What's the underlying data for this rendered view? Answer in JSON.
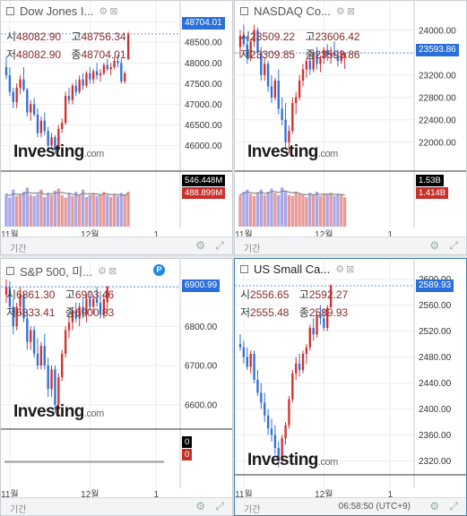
{
  "colors": {
    "up": "#d2302e",
    "down": "#2f6fd6",
    "vol_up": "#e79a98",
    "vol_down": "#a8a7e8",
    "price_tag": "#2a6fdb",
    "grid": "#eeeeee",
    "dash": "#6a98e0"
  },
  "logo": {
    "text": "Investing",
    "suffix": ".com"
  },
  "months": [
    "11월",
    "12월",
    "1"
  ],
  "bottom": {
    "period_label": "기간",
    "time": "06:58:50 (UTC+9)",
    "gear_icon": "gear-icon",
    "expand_icon": "expand-icon"
  },
  "panels": [
    {
      "title": "Dow Jones I...",
      "ohlc": {
        "o_label": "시",
        "o": "48082.90",
        "h_label": "고",
        "h": "48756.34",
        "l_label": "저",
        "l": "48082.90",
        "c_label": "종",
        "c": "48704.01"
      },
      "price_label": "48704.01",
      "vol_labels": {
        "top": "546.448M",
        "bottom": "488.899M"
      },
      "chart_data": {
        "type": "candlestick",
        "ylim": [
          45400,
          49200
        ],
        "yticks": [
          49000,
          48500,
          48000,
          47500,
          47000,
          46500,
          46000
        ],
        "last": 48704.01,
        "months": [
          {
            "label": "11월",
            "i": 1
          },
          {
            "label": "12월",
            "i": 24
          },
          {
            "label": "1",
            "i": 43
          }
        ],
        "candles": [
          [
            47900,
            48150,
            47600,
            47700
          ],
          [
            47700,
            47900,
            47200,
            47300
          ],
          [
            47300,
            47400,
            46900,
            47050
          ],
          [
            47050,
            47500,
            46900,
            47400
          ],
          [
            47400,
            47700,
            47250,
            47600
          ],
          [
            47600,
            47900,
            47300,
            47350
          ],
          [
            47350,
            47400,
            46700,
            46800
          ],
          [
            46800,
            47100,
            46600,
            47000
          ],
          [
            47000,
            47150,
            46700,
            46750
          ],
          [
            46750,
            46900,
            46200,
            46300
          ],
          [
            46300,
            46700,
            46200,
            46600
          ],
          [
            46600,
            46800,
            46250,
            46350
          ],
          [
            46350,
            46450,
            45900,
            46000
          ],
          [
            46000,
            46300,
            45950,
            46200
          ],
          [
            46200,
            46250,
            45800,
            45900
          ],
          [
            45900,
            46500,
            45850,
            46400
          ],
          [
            46400,
            46650,
            46300,
            46550
          ],
          [
            46550,
            47300,
            46500,
            47200
          ],
          [
            47200,
            47400,
            47000,
            47100
          ],
          [
            47100,
            47500,
            47000,
            47450
          ],
          [
            47450,
            47600,
            47200,
            47300
          ],
          [
            47300,
            47700,
            47250,
            47600
          ],
          [
            47600,
            47750,
            47350,
            47450
          ],
          [
            47450,
            47800,
            47400,
            47750
          ],
          [
            47750,
            47900,
            47500,
            47600
          ],
          [
            47600,
            47850,
            47500,
            47800
          ],
          [
            47800,
            48000,
            47600,
            47700
          ],
          [
            47700,
            47850,
            47550,
            47750
          ],
          [
            47750,
            48000,
            47700,
            47950
          ],
          [
            47950,
            48100,
            47800,
            47850
          ],
          [
            47850,
            48000,
            47700,
            47900
          ],
          [
            47900,
            48150,
            47850,
            48050
          ],
          [
            48050,
            48200,
            47900,
            48000
          ],
          [
            48000,
            48100,
            47500,
            47550
          ],
          [
            47550,
            47800,
            47500,
            47750
          ],
          [
            48082.9,
            48756.34,
            48082.9,
            48704.01
          ]
        ],
        "volume": [
          0.62,
          0.55,
          0.7,
          0.58,
          0.6,
          0.66,
          0.74,
          0.6,
          0.58,
          0.62,
          0.7,
          0.56,
          0.64,
          0.6,
          0.68,
          0.72,
          0.6,
          0.55,
          0.62,
          0.58,
          0.66,
          0.6,
          0.7,
          0.56,
          0.6,
          0.64,
          0.58,
          0.62,
          0.66,
          0.6,
          0.56,
          0.62,
          0.58,
          0.64,
          0.6,
          0.66
        ]
      }
    },
    {
      "title": "NASDAQ Co...",
      "ohlc": {
        "o_label": "시",
        "o": "23509.22",
        "h_label": "고",
        "h": "23606.42",
        "l_label": "저",
        "l": "23309.85",
        "c_label": "종",
        "c": "23593.86"
      },
      "price_label": "23593.86",
      "vol_labels": {
        "top": "1.53B",
        "bottom": "1.414B"
      },
      "chart_data": {
        "type": "candlestick",
        "ylim": [
          21500,
          24300
        ],
        "yticks": [
          24000,
          23600,
          23200,
          22800,
          22400,
          22000
        ],
        "last": 23593.86,
        "months": [
          {
            "label": "11월",
            "i": 1
          },
          {
            "label": "12월",
            "i": 24
          },
          {
            "label": "1",
            "i": 43
          }
        ],
        "candles": [
          [
            23700,
            24000,
            23500,
            23900
          ],
          [
            23900,
            24100,
            23700,
            23750
          ],
          [
            23750,
            23900,
            23400,
            23500
          ],
          [
            23500,
            23850,
            23450,
            23800
          ],
          [
            23800,
            24100,
            23700,
            24000
          ],
          [
            24000,
            24050,
            23500,
            23600
          ],
          [
            23600,
            23700,
            23100,
            23200
          ],
          [
            23200,
            23500,
            23100,
            23400
          ],
          [
            23400,
            23450,
            22900,
            23000
          ],
          [
            23000,
            23200,
            22700,
            22800
          ],
          [
            22800,
            23150,
            22750,
            23100
          ],
          [
            23100,
            23300,
            22500,
            22600
          ],
          [
            22600,
            22800,
            22300,
            22400
          ],
          [
            22400,
            22700,
            21900,
            22000
          ],
          [
            22000,
            22300,
            21800,
            22200
          ],
          [
            22200,
            22800,
            22150,
            22700
          ],
          [
            22700,
            22900,
            22500,
            22800
          ],
          [
            22800,
            23200,
            22750,
            23100
          ],
          [
            23100,
            23400,
            23000,
            23300
          ],
          [
            23300,
            23500,
            23150,
            23450
          ],
          [
            23450,
            23600,
            23200,
            23300
          ],
          [
            23300,
            23650,
            23250,
            23600
          ],
          [
            23600,
            23700,
            23300,
            23400
          ],
          [
            23400,
            23550,
            23250,
            23500
          ],
          [
            23500,
            23700,
            23400,
            23650
          ],
          [
            23650,
            23750,
            23450,
            23550
          ],
          [
            23550,
            23700,
            23400,
            23600
          ],
          [
            23600,
            23800,
            23500,
            23550
          ],
          [
            23550,
            23650,
            23350,
            23450
          ],
          [
            23450,
            23650,
            23400,
            23600
          ],
          [
            23509.22,
            23606.42,
            23309.85,
            23593.86
          ]
        ],
        "volume": [
          0.6,
          0.66,
          0.7,
          0.62,
          0.58,
          0.64,
          0.7,
          0.6,
          0.66,
          0.72,
          0.64,
          0.6,
          0.74,
          0.68,
          0.6,
          0.58,
          0.66,
          0.62,
          0.6,
          0.56,
          0.64,
          0.6,
          0.66,
          0.58,
          0.62,
          0.6,
          0.64,
          0.58,
          0.62,
          0.6,
          0.56
        ]
      }
    },
    {
      "title": "S&P 500, 미...",
      "badge": "P",
      "ohlc": {
        "o_label": "시",
        "o": "6861.30",
        "h_label": "고",
        "h": "6903.46",
        "l_label": "저",
        "l": "6833.41",
        "c_label": "종",
        "c": "6900.83"
      },
      "price_label": "6900.99",
      "vol_labels": {
        "top": "0",
        "bottom": "0"
      },
      "chart_data": {
        "type": "candlestick",
        "ylim": [
          6540,
          6940
        ],
        "yticks": [
          6900,
          6800,
          6700,
          6600
        ],
        "last": 6900.99,
        "months": [
          {
            "label": "11월",
            "i": 1
          },
          {
            "label": "12월",
            "i": 24
          },
          {
            "label": "1",
            "i": 43
          }
        ],
        "candles": [
          [
            6880,
            6920,
            6860,
            6900
          ],
          [
            6900,
            6915,
            6840,
            6850
          ],
          [
            6850,
            6870,
            6780,
            6800
          ],
          [
            6800,
            6860,
            6790,
            6850
          ],
          [
            6850,
            6900,
            6830,
            6880
          ],
          [
            6880,
            6890,
            6810,
            6820
          ],
          [
            6820,
            6840,
            6740,
            6760
          ],
          [
            6760,
            6800,
            6740,
            6790
          ],
          [
            6790,
            6800,
            6720,
            6730
          ],
          [
            6730,
            6770,
            6690,
            6700
          ],
          [
            6700,
            6760,
            6690,
            6750
          ],
          [
            6750,
            6780,
            6690,
            6700
          ],
          [
            6700,
            6720,
            6620,
            6640
          ],
          [
            6640,
            6700,
            6620,
            6690
          ],
          [
            6690,
            6700,
            6580,
            6600
          ],
          [
            6600,
            6680,
            6570,
            6670
          ],
          [
            6670,
            6740,
            6660,
            6730
          ],
          [
            6730,
            6800,
            6720,
            6790
          ],
          [
            6790,
            6830,
            6770,
            6810
          ],
          [
            6810,
            6850,
            6790,
            6840
          ],
          [
            6840,
            6860,
            6810,
            6820
          ],
          [
            6820,
            6860,
            6800,
            6850
          ],
          [
            6850,
            6870,
            6820,
            6830
          ],
          [
            6830,
            6880,
            6810,
            6870
          ],
          [
            6870,
            6890,
            6840,
            6850
          ],
          [
            6850,
            6880,
            6830,
            6870
          ],
          [
            6870,
            6900,
            6850,
            6860
          ],
          [
            6860,
            6890,
            6820,
            6830
          ],
          [
            6830,
            6880,
            6820,
            6870
          ],
          [
            6861.3,
            6903.46,
            6833.41,
            6900.83
          ]
        ],
        "volume": []
      }
    },
    {
      "title": "US Small Ca...",
      "ohlc": {
        "o_label": "시",
        "o": "2556.65",
        "h_label": "고",
        "h": "2592.27",
        "l_label": "저",
        "l": "2555.48",
        "c_label": "종",
        "c": "2589.93"
      },
      "price_label": "2589.93",
      "active": true,
      "chart_data": {
        "type": "candlestick",
        "ylim": [
          2300,
          2612
        ],
        "yticks": [
          2600,
          2560,
          2520,
          2480,
          2440,
          2400,
          2360,
          2320
        ],
        "last": 2589.93,
        "months": [
          {
            "label": "11월",
            "i": 1
          },
          {
            "label": "12월",
            "i": 24
          },
          {
            "label": "1",
            "i": 43
          }
        ],
        "candles": [
          [
            2500,
            2515,
            2490,
            2495
          ],
          [
            2495,
            2505,
            2470,
            2480
          ],
          [
            2480,
            2495,
            2460,
            2465
          ],
          [
            2465,
            2490,
            2455,
            2485
          ],
          [
            2485,
            2490,
            2440,
            2445
          ],
          [
            2445,
            2460,
            2420,
            2425
          ],
          [
            2425,
            2440,
            2400,
            2410
          ],
          [
            2410,
            2425,
            2380,
            2390
          ],
          [
            2390,
            2400,
            2360,
            2370
          ],
          [
            2370,
            2385,
            2350,
            2360
          ],
          [
            2360,
            2375,
            2330,
            2340
          ],
          [
            2340,
            2350,
            2310,
            2320
          ],
          [
            2320,
            2360,
            2315,
            2355
          ],
          [
            2355,
            2380,
            2345,
            2375
          ],
          [
            2375,
            2420,
            2370,
            2415
          ],
          [
            2415,
            2460,
            2410,
            2455
          ],
          [
            2455,
            2480,
            2445,
            2470
          ],
          [
            2470,
            2485,
            2450,
            2460
          ],
          [
            2460,
            2490,
            2455,
            2485
          ],
          [
            2485,
            2500,
            2470,
            2495
          ],
          [
            2495,
            2530,
            2490,
            2525
          ],
          [
            2525,
            2540,
            2505,
            2515
          ],
          [
            2515,
            2550,
            2510,
            2545
          ],
          [
            2545,
            2560,
            2530,
            2540
          ],
          [
            2540,
            2555,
            2520,
            2525
          ],
          [
            2525,
            2560,
            2520,
            2556
          ],
          [
            2556.65,
            2592.27,
            2555.48,
            2589.93
          ]
        ],
        "volume": []
      }
    }
  ]
}
